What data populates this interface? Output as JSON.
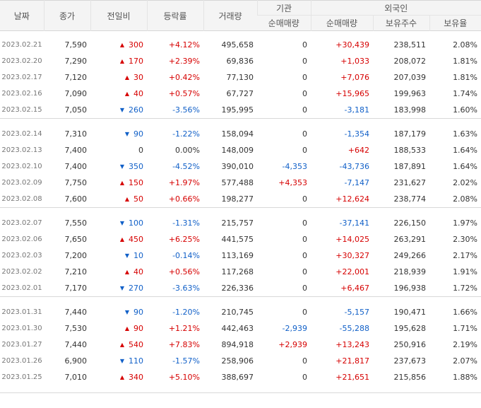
{
  "header": {
    "date": "날짜",
    "close": "종가",
    "change": "전일비",
    "rate": "등락률",
    "volume": "거래량",
    "institution": "기관",
    "foreign": "외국인",
    "inst_net": "순매매량",
    "foreign_net": "순매매량",
    "holdings": "보유주수",
    "holding_ratio": "보유율"
  },
  "icons": {
    "up": "triangle-up-icon",
    "down": "triangle-down-icon"
  },
  "colors": {
    "up": "#d60000",
    "down": "#1160c8"
  },
  "groups": [
    [
      {
        "date": "2023.02.21",
        "close": "7,590",
        "dir": "up",
        "change": "300",
        "rate": "+4.12%",
        "volume": "495,658",
        "inst": "0",
        "frn": "+30,439",
        "hold": "238,511",
        "ratio": "2.08%"
      },
      {
        "date": "2023.02.20",
        "close": "7,290",
        "dir": "up",
        "change": "170",
        "rate": "+2.39%",
        "volume": "69,836",
        "inst": "0",
        "frn": "+1,033",
        "hold": "208,072",
        "ratio": "1.81%"
      },
      {
        "date": "2023.02.17",
        "close": "7,120",
        "dir": "up",
        "change": "30",
        "rate": "+0.42%",
        "volume": "77,130",
        "inst": "0",
        "frn": "+7,076",
        "hold": "207,039",
        "ratio": "1.81%"
      },
      {
        "date": "2023.02.16",
        "close": "7,090",
        "dir": "up",
        "change": "40",
        "rate": "+0.57%",
        "volume": "67,727",
        "inst": "0",
        "frn": "+15,965",
        "hold": "199,963",
        "ratio": "1.74%"
      },
      {
        "date": "2023.02.15",
        "close": "7,050",
        "dir": "down",
        "change": "260",
        "rate": "-3.56%",
        "volume": "195,995",
        "inst": "0",
        "frn": "-3,181",
        "hold": "183,998",
        "ratio": "1.60%"
      }
    ],
    [
      {
        "date": "2023.02.14",
        "close": "7,310",
        "dir": "down",
        "change": "90",
        "rate": "-1.22%",
        "volume": "158,094",
        "inst": "0",
        "frn": "-1,354",
        "hold": "187,179",
        "ratio": "1.63%"
      },
      {
        "date": "2023.02.13",
        "close": "7,400",
        "dir": "none",
        "change": "0",
        "rate": "0.00%",
        "volume": "148,009",
        "inst": "0",
        "frn": "+642",
        "hold": "188,533",
        "ratio": "1.64%"
      },
      {
        "date": "2023.02.10",
        "close": "7,400",
        "dir": "down",
        "change": "350",
        "rate": "-4.52%",
        "volume": "390,010",
        "inst": "-4,353",
        "frn": "-43,736",
        "hold": "187,891",
        "ratio": "1.64%"
      },
      {
        "date": "2023.02.09",
        "close": "7,750",
        "dir": "up",
        "change": "150",
        "rate": "+1.97%",
        "volume": "577,488",
        "inst": "+4,353",
        "frn": "-7,147",
        "hold": "231,627",
        "ratio": "2.02%"
      },
      {
        "date": "2023.02.08",
        "close": "7,600",
        "dir": "up",
        "change": "50",
        "rate": "+0.66%",
        "volume": "198,277",
        "inst": "0",
        "frn": "+12,624",
        "hold": "238,774",
        "ratio": "2.08%"
      }
    ],
    [
      {
        "date": "2023.02.07",
        "close": "7,550",
        "dir": "down",
        "change": "100",
        "rate": "-1.31%",
        "volume": "215,757",
        "inst": "0",
        "frn": "-37,141",
        "hold": "226,150",
        "ratio": "1.97%"
      },
      {
        "date": "2023.02.06",
        "close": "7,650",
        "dir": "up",
        "change": "450",
        "rate": "+6.25%",
        "volume": "441,575",
        "inst": "0",
        "frn": "+14,025",
        "hold": "263,291",
        "ratio": "2.30%"
      },
      {
        "date": "2023.02.03",
        "close": "7,200",
        "dir": "down",
        "change": "10",
        "rate": "-0.14%",
        "volume": "113,169",
        "inst": "0",
        "frn": "+30,327",
        "hold": "249,266",
        "ratio": "2.17%"
      },
      {
        "date": "2023.02.02",
        "close": "7,210",
        "dir": "up",
        "change": "40",
        "rate": "+0.56%",
        "volume": "117,268",
        "inst": "0",
        "frn": "+22,001",
        "hold": "218,939",
        "ratio": "1.91%"
      },
      {
        "date": "2023.02.01",
        "close": "7,170",
        "dir": "down",
        "change": "270",
        "rate": "-3.63%",
        "volume": "226,336",
        "inst": "0",
        "frn": "+6,467",
        "hold": "196,938",
        "ratio": "1.72%"
      }
    ],
    [
      {
        "date": "2023.01.31",
        "close": "7,440",
        "dir": "down",
        "change": "90",
        "rate": "-1.20%",
        "volume": "210,745",
        "inst": "0",
        "frn": "-5,157",
        "hold": "190,471",
        "ratio": "1.66%"
      },
      {
        "date": "2023.01.30",
        "close": "7,530",
        "dir": "up",
        "change": "90",
        "rate": "+1.21%",
        "volume": "442,463",
        "inst": "-2,939",
        "frn": "-55,288",
        "hold": "195,628",
        "ratio": "1.71%"
      },
      {
        "date": "2023.01.27",
        "close": "7,440",
        "dir": "up",
        "change": "540",
        "rate": "+7.83%",
        "volume": "894,918",
        "inst": "+2,939",
        "frn": "+13,243",
        "hold": "250,916",
        "ratio": "2.19%"
      },
      {
        "date": "2023.01.26",
        "close": "6,900",
        "dir": "down",
        "change": "110",
        "rate": "-1.57%",
        "volume": "258,906",
        "inst": "0",
        "frn": "+21,817",
        "hold": "237,673",
        "ratio": "2.07%"
      },
      {
        "date": "2023.01.25",
        "close": "7,010",
        "dir": "up",
        "change": "340",
        "rate": "+5.10%",
        "volume": "388,697",
        "inst": "0",
        "frn": "+21,651",
        "hold": "215,856",
        "ratio": "1.88%"
      }
    ]
  ]
}
